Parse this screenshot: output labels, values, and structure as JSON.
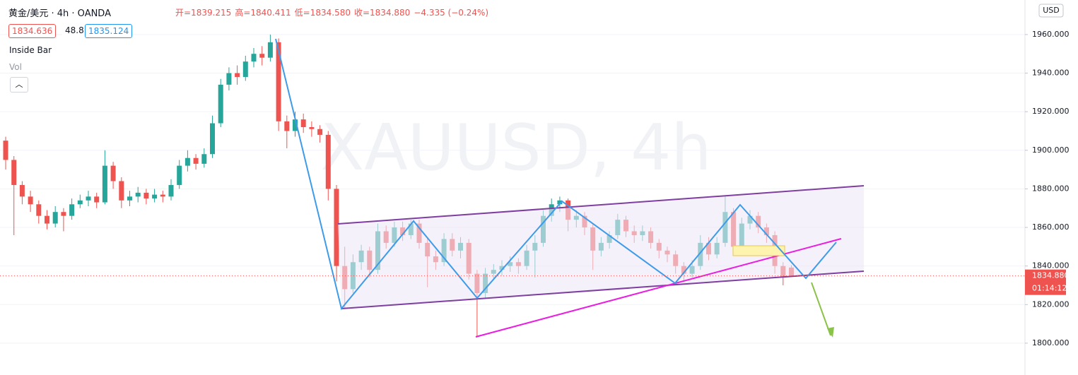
{
  "chart_data": {
    "type": "candlestick",
    "title": "黄金/美元 · 4h · OANDA",
    "legend_text": [
      "开=1839.215",
      "高=1840.411",
      "低=1834.580",
      "收=1834.880",
      "−4.335 (−0.24%)"
    ],
    "badges": [
      "1834.636",
      "48.8",
      "1835.124"
    ],
    "indicators": [
      "Inside Bar",
      "Vol"
    ],
    "watermark": "XAUUSD, 4h",
    "currency": "USD",
    "last_price_label": "1834.880",
    "countdown": "01:14:12",
    "up_color": "#26a69a",
    "down_color": "#ef5350",
    "grid": true,
    "ylim": [
      1783.5,
      1977.9
    ],
    "yticks": [
      {
        "value": 1800,
        "label": "1800.000"
      },
      {
        "value": 1820,
        "label": "1820.000"
      },
      {
        "value": 1840,
        "label": "1840.000"
      },
      {
        "value": 1860,
        "label": "1860.000"
      },
      {
        "value": 1880,
        "label": "1880.000"
      },
      {
        "value": 1900,
        "label": "1900.000"
      },
      {
        "value": 1920,
        "label": "1920.000"
      },
      {
        "value": 1940,
        "label": "1940.000"
      },
      {
        "value": 1960,
        "label": "1960.000"
      }
    ],
    "ohlc": [
      [
        1905,
        1907,
        1890,
        1895
      ],
      [
        1895,
        1897,
        1856,
        1882
      ],
      [
        1882,
        1884,
        1872,
        1876
      ],
      [
        1876,
        1879,
        1868,
        1872
      ],
      [
        1872,
        1874,
        1862,
        1866
      ],
      [
        1866,
        1869,
        1859,
        1862
      ],
      [
        1862,
        1871,
        1860,
        1868
      ],
      [
        1868,
        1870,
        1858,
        1866
      ],
      [
        1866,
        1875,
        1864,
        1872
      ],
      [
        1872,
        1877,
        1870,
        1874
      ],
      [
        1874,
        1879,
        1871,
        1876
      ],
      [
        1876,
        1878,
        1870,
        1873
      ],
      [
        1873,
        1900,
        1872,
        1892
      ],
      [
        1892,
        1894,
        1880,
        1884
      ],
      [
        1884,
        1886,
        1870,
        1874
      ],
      [
        1874,
        1879,
        1871,
        1876
      ],
      [
        1876,
        1881,
        1873,
        1878
      ],
      [
        1878,
        1880,
        1872,
        1875
      ],
      [
        1875,
        1880,
        1873,
        1877
      ],
      [
        1877,
        1879,
        1873,
        1876
      ],
      [
        1876,
        1885,
        1874,
        1882
      ],
      [
        1882,
        1895,
        1880,
        1892
      ],
      [
        1892,
        1900,
        1889,
        1896
      ],
      [
        1896,
        1898,
        1890,
        1893
      ],
      [
        1893,
        1901,
        1891,
        1898
      ],
      [
        1898,
        1918,
        1896,
        1914
      ],
      [
        1914,
        1937,
        1912,
        1934
      ],
      [
        1934,
        1943,
        1931,
        1940
      ],
      [
        1940,
        1944,
        1934,
        1938
      ],
      [
        1938,
        1949,
        1936,
        1946
      ],
      [
        1946,
        1953,
        1943,
        1950
      ],
      [
        1950,
        1954,
        1944,
        1948
      ],
      [
        1948,
        1960,
        1946,
        1956
      ],
      [
        1956,
        1958,
        1910,
        1915
      ],
      [
        1915,
        1918,
        1901,
        1910
      ],
      [
        1910,
        1920,
        1907,
        1916
      ],
      [
        1916,
        1919,
        1909,
        1912
      ],
      [
        1912,
        1915,
        1907,
        1911
      ],
      [
        1911,
        1913,
        1904,
        1908
      ],
      [
        1908,
        1910,
        1874,
        1880
      ],
      [
        1880,
        1882,
        1832,
        1840
      ],
      [
        1840,
        1850,
        1818,
        1828
      ],
      [
        1828,
        1846,
        1826,
        1842
      ],
      [
        1842,
        1851,
        1838,
        1848
      ],
      [
        1848,
        1850,
        1834,
        1838
      ],
      [
        1838,
        1862,
        1836,
        1858
      ],
      [
        1858,
        1861,
        1849,
        1852
      ],
      [
        1852,
        1863,
        1850,
        1860
      ],
      [
        1860,
        1863,
        1853,
        1856
      ],
      [
        1856,
        1864,
        1854,
        1862
      ],
      [
        1862,
        1864,
        1849,
        1852
      ],
      [
        1852,
        1855,
        1829,
        1845
      ],
      [
        1845,
        1848,
        1838,
        1842
      ],
      [
        1842,
        1857,
        1840,
        1854
      ],
      [
        1854,
        1857,
        1845,
        1848
      ],
      [
        1848,
        1855,
        1844,
        1852
      ],
      [
        1852,
        1854,
        1833,
        1836
      ],
      [
        1836,
        1838,
        1803,
        1826
      ],
      [
        1826,
        1839,
        1823,
        1836
      ],
      [
        1836,
        1841,
        1833,
        1838
      ],
      [
        1838,
        1843,
        1835,
        1840
      ],
      [
        1840,
        1845,
        1837,
        1842
      ],
      [
        1842,
        1844,
        1836,
        1840
      ],
      [
        1840,
        1851,
        1838,
        1848
      ],
      [
        1848,
        1856,
        1834,
        1852
      ],
      [
        1852,
        1869,
        1850,
        1866
      ],
      [
        1866,
        1875,
        1863,
        1872
      ],
      [
        1872,
        1876,
        1868,
        1874
      ],
      [
        1874,
        1875,
        1858,
        1864
      ],
      [
        1864,
        1869,
        1860,
        1866
      ],
      [
        1866,
        1868,
        1856,
        1860
      ],
      [
        1860,
        1862,
        1838,
        1848
      ],
      [
        1848,
        1855,
        1845,
        1852
      ],
      [
        1852,
        1858,
        1849,
        1856
      ],
      [
        1856,
        1867,
        1854,
        1864
      ],
      [
        1864,
        1866,
        1855,
        1858
      ],
      [
        1858,
        1861,
        1852,
        1856
      ],
      [
        1856,
        1861,
        1853,
        1858
      ],
      [
        1858,
        1860,
        1849,
        1852
      ],
      [
        1852,
        1854,
        1844,
        1848
      ],
      [
        1848,
        1850,
        1842,
        1846
      ],
      [
        1846,
        1848,
        1836,
        1840
      ],
      [
        1840,
        1842,
        1832,
        1836
      ],
      [
        1836,
        1843,
        1834,
        1840
      ],
      [
        1840,
        1856,
        1838,
        1852
      ],
      [
        1852,
        1855,
        1843,
        1846
      ],
      [
        1846,
        1855,
        1844,
        1852
      ],
      [
        1852,
        1876,
        1850,
        1868
      ],
      [
        1868,
        1870,
        1846,
        1850
      ],
      [
        1850,
        1865,
        1848,
        1862
      ],
      [
        1862,
        1869,
        1859,
        1866
      ],
      [
        1866,
        1868,
        1857,
        1860
      ],
      [
        1860,
        1862,
        1852,
        1856
      ],
      [
        1856,
        1858,
        1836,
        1840
      ],
      [
        1840,
        1842,
        1830,
        1834
      ],
      [
        1839.215,
        1840.411,
        1834.58,
        1834.88
      ]
    ]
  }
}
